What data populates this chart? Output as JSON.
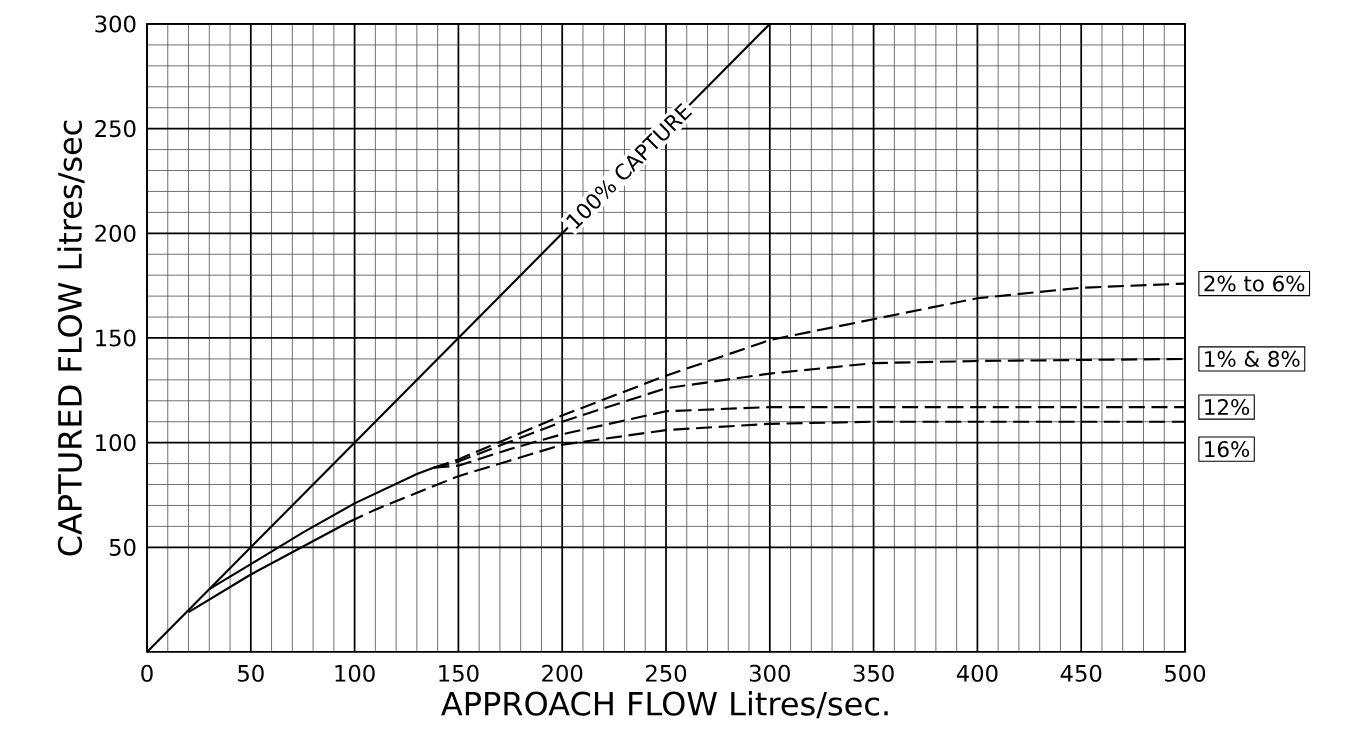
{
  "chart_data": {
    "type": "line",
    "xlabel": "APPROACH FLOW Litres/sec.",
    "ylabel": "CAPTURED FLOW Litres/sec",
    "xlim": [
      0,
      500
    ],
    "ylim": [
      0,
      300
    ],
    "xticks": [
      0,
      50,
      100,
      150,
      200,
      250,
      300,
      350,
      400,
      450,
      500
    ],
    "yticks": [
      50,
      100,
      150,
      200,
      250,
      300
    ],
    "grid": true,
    "annotations": [
      {
        "text": "100% CAPTURE",
        "x": 232,
        "y": 232
      }
    ],
    "series": [
      {
        "color": "#000000",
        "line_style": "solid",
        "x": [
          0,
          300
        ],
        "values": [
          0,
          300
        ]
      },
      {
        "color": "#000000",
        "line_style": "solid",
        "x": [
          20,
          50,
          97
        ],
        "values": [
          19,
          37,
          62
        ]
      },
      {
        "color": "#000000",
        "line_style": "solid",
        "x": [
          30,
          50,
          75,
          100,
          130,
          138
        ],
        "values": [
          30,
          42,
          57,
          71,
          85,
          88
        ]
      },
      {
        "name": "2% to 6%",
        "color": "#000000",
        "line_style": "dashed",
        "x": [
          138,
          150,
          200,
          250,
          300,
          350,
          400,
          450,
          500
        ],
        "values": [
          88,
          92,
          113,
          132,
          149,
          159,
          169,
          174,
          176
        ]
      },
      {
        "name": "1% & 8%",
        "color": "#000000",
        "line_style": "dashed",
        "x": [
          138,
          150,
          200,
          250,
          300,
          350,
          400,
          500
        ],
        "values": [
          88,
          91,
          110,
          126,
          133,
          138,
          139,
          140
        ]
      },
      {
        "name": "12%",
        "color": "#000000",
        "line_style": "dashed",
        "x": [
          138,
          150,
          175,
          200,
          250,
          300,
          350,
          500
        ],
        "values": [
          88,
          89,
          97,
          104,
          115,
          117,
          117,
          117
        ]
      },
      {
        "name": "16%",
        "color": "#000000",
        "line_style": "dashed",
        "x": [
          97,
          110,
          150,
          200,
          250,
          300,
          350,
          400,
          500
        ],
        "values": [
          62,
          68,
          84,
          99,
          106,
          109,
          110,
          110,
          110
        ]
      }
    ]
  }
}
